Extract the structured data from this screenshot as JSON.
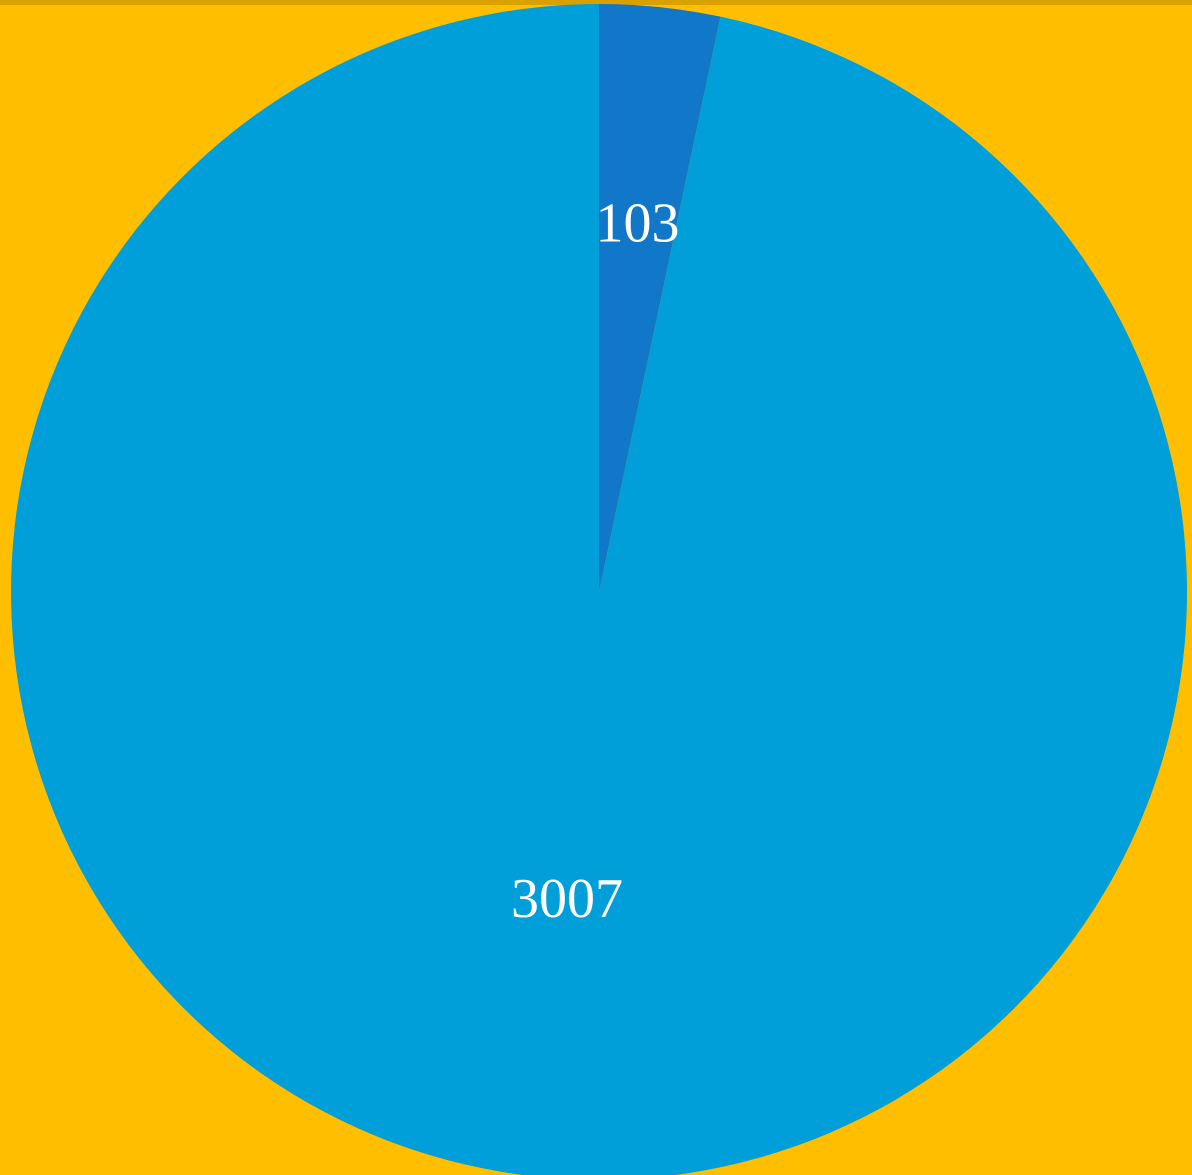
{
  "chart_data": {
    "type": "pie",
    "start_angle_deg": 0,
    "direction": "clockwise",
    "slices": [
      {
        "label": "103",
        "value": 103,
        "color": "#1177C8"
      },
      {
        "label": "3007",
        "value": 3007,
        "color": "#009FDA"
      }
    ],
    "title": "",
    "legend": "none"
  },
  "background_color": "#FFBF00"
}
